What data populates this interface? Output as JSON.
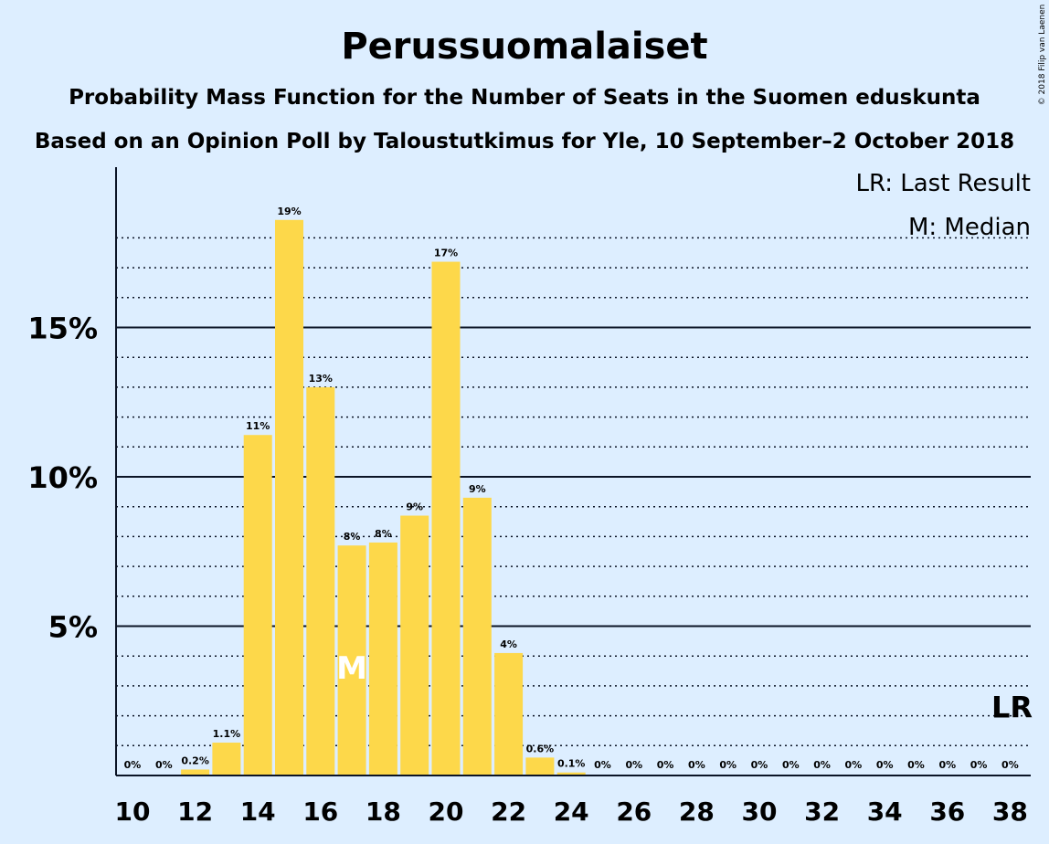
{
  "title": "Perussuomalaiset",
  "subtitle1": "Probability Mass Function for the Number of Seats in the Suomen eduskunta",
  "subtitle2": "Based on an Opinion Poll by Taloustutkimus for Yle, 10 September–2 October 2018",
  "copyright": "© 2018 Filip van Laenen",
  "legend": {
    "last_result": "LR: Last Result",
    "median": "M: Median"
  },
  "colors": {
    "background": "#ddeeff",
    "bar": "#fdd84a",
    "text": "#0b1426",
    "median_mark": "#ffffff"
  },
  "chart_data": {
    "type": "bar",
    "x": [
      10,
      11,
      12,
      13,
      14,
      15,
      16,
      17,
      18,
      19,
      20,
      21,
      22,
      23,
      24,
      25,
      26,
      27,
      28,
      29,
      30,
      31,
      32,
      33,
      34,
      35,
      36,
      37,
      38
    ],
    "values": [
      0,
      0,
      0.2,
      1.1,
      11.4,
      18.6,
      13.0,
      7.7,
      7.8,
      8.7,
      17.2,
      9.3,
      4.1,
      0.6,
      0.1,
      0,
      0,
      0,
      0,
      0,
      0,
      0,
      0,
      0,
      0,
      0,
      0,
      0,
      0
    ],
    "labels": [
      "0%",
      "0%",
      "0.2%",
      "1.1%",
      "11%",
      "19%",
      "13%",
      "8%",
      "8%",
      "9%",
      "17%",
      "9%",
      "4%",
      "0.6%",
      "0.1%",
      "0%",
      "0%",
      "0%",
      "0%",
      "0%",
      "0%",
      "0%",
      "0%",
      "0%",
      "0%",
      "0%",
      "0%",
      "0%",
      "0%"
    ],
    "x_tick_labels": [
      "10",
      "12",
      "14",
      "16",
      "18",
      "20",
      "22",
      "24",
      "26",
      "28",
      "30",
      "32",
      "34",
      "36",
      "38"
    ],
    "y_tick_labels": [
      "5%",
      "10%",
      "15%"
    ],
    "y_tick_values": [
      5,
      10,
      15
    ],
    "ylim": [
      0,
      20
    ],
    "median": 17,
    "median_label": "M",
    "last_result": 38,
    "last_result_label": "LR",
    "grid": true
  }
}
